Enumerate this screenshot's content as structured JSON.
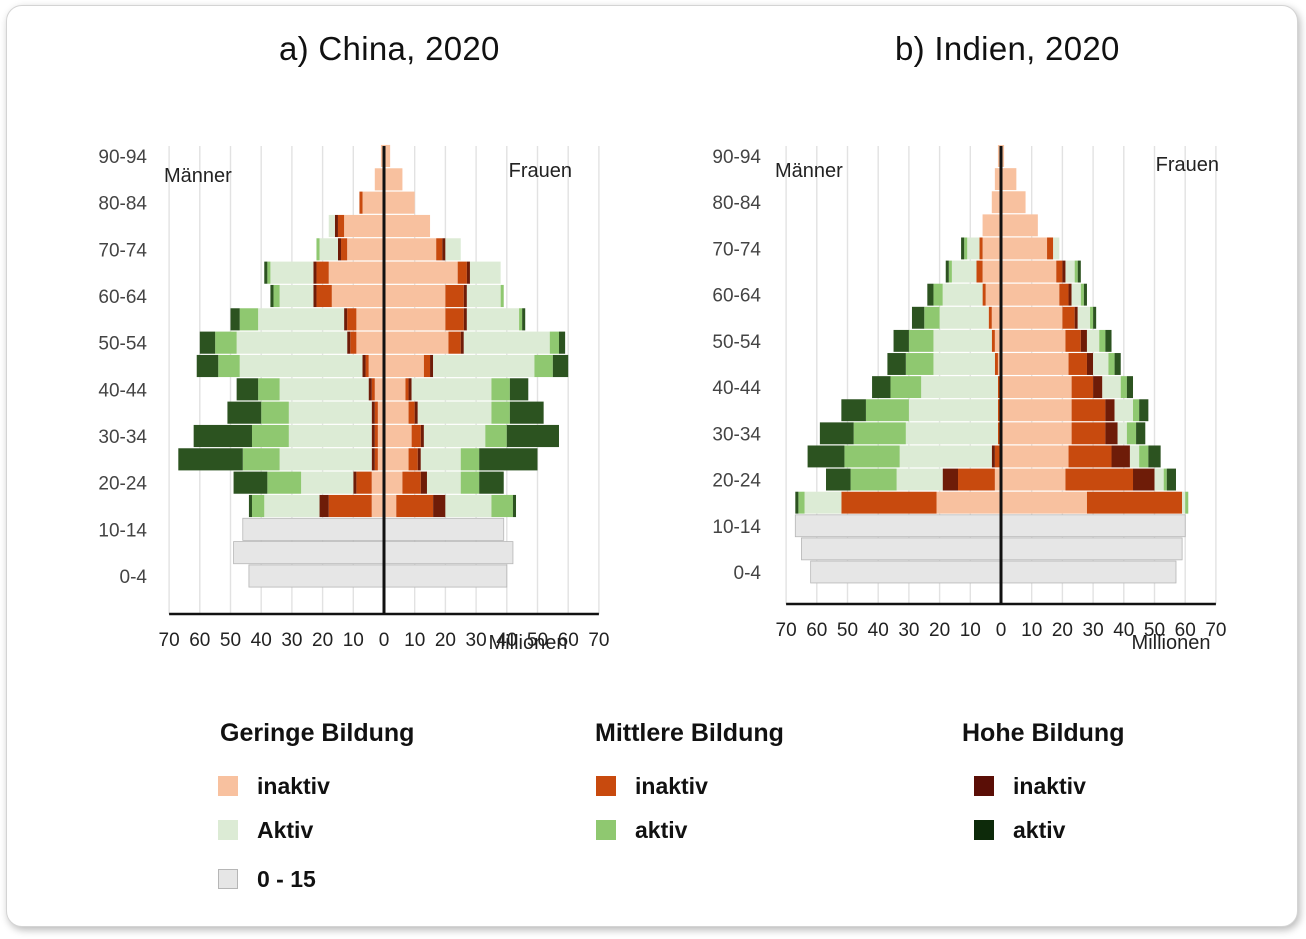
{
  "colors": {
    "low_inactive": "#f8c19f",
    "low_active": "#dcebd5",
    "child": "#e6e6e6",
    "child_border": "#b6b6b6",
    "mid_inactive": "#c84a0e",
    "mid_active": "#8fc870",
    "high_inactive": "#6e1c08",
    "high_active": "#2c5320",
    "grid": "#e2e2e2",
    "axis": "#111111",
    "tick": "#444444"
  },
  "legend": {
    "groups": [
      {
        "title": "Geringe Bildung",
        "items": [
          {
            "label": "inaktiv",
            "color": "#f8c19f"
          },
          {
            "label": "Aktiv",
            "color": "#dcebd5"
          },
          {
            "label": "0 - 15",
            "color": "#e6e6e6"
          }
        ]
      },
      {
        "title": "Mittlere Bildung",
        "items": [
          {
            "label": "inaktiv",
            "color": "#c84a0e"
          },
          {
            "label": "aktiv",
            "color": "#8fc870"
          }
        ]
      },
      {
        "title": "Hohe Bildung",
        "items": [
          {
            "label": "inaktiv",
            "color": "#5a0e06"
          },
          {
            "label": "aktiv",
            "color": "#0d2a0a"
          }
        ]
      }
    ]
  },
  "chart_data": [
    {
      "type": "bar",
      "title": "a) China, 2020",
      "left_label": "Männer",
      "right_label": "Frauen",
      "xlabel": "Millionen",
      "xlim": [
        -70,
        70
      ],
      "xticks": [
        "70",
        "60",
        "50",
        "40",
        "30",
        "20",
        "10",
        "0",
        "10",
        "20",
        "30",
        "40",
        "50",
        "60",
        "70"
      ],
      "age_labels": [
        "90-94",
        "80-84",
        "70-74",
        "60-64",
        "50-54",
        "40-44",
        "30-34",
        "20-24",
        "10-14",
        "0-4"
      ],
      "segment_order": [
        "child",
        "low_inactive",
        "mid_inactive",
        "high_inactive",
        "low_active",
        "mid_active",
        "high_active"
      ],
      "categories": [
        "0-4",
        "5-9",
        "10-14",
        "15-19",
        "20-24",
        "25-29",
        "30-34",
        "35-39",
        "40-44",
        "45-49",
        "50-54",
        "55-59",
        "60-64",
        "65-69",
        "70-74",
        "75-79",
        "80-84",
        "85-89",
        "90-94"
      ],
      "series": [
        {
          "name": "Männer",
          "segments": [
            [
              44,
              0,
              0,
              0,
              0,
              0,
              0
            ],
            [
              49,
              0,
              0,
              0,
              0,
              0,
              0
            ],
            [
              46,
              0,
              0,
              0,
              0,
              0,
              0
            ],
            [
              0,
              4,
              14,
              3,
              18,
              4,
              1
            ],
            [
              0,
              4,
              5,
              1,
              17,
              11,
              11
            ],
            [
              0,
              2,
              1,
              1,
              30,
              12,
              21
            ],
            [
              0,
              2,
              1,
              1,
              27,
              12,
              19
            ],
            [
              0,
              2,
              1,
              1,
              27,
              9,
              11
            ],
            [
              0,
              3,
              1,
              1,
              29,
              7,
              7
            ],
            [
              0,
              5,
              1,
              1,
              40,
              7,
              7
            ],
            [
              0,
              9,
              2,
              1,
              36,
              7,
              5
            ],
            [
              0,
              9,
              3,
              1,
              28,
              6,
              3
            ],
            [
              0,
              17,
              5,
              1,
              11,
              2,
              1
            ],
            [
              0,
              18,
              4,
              1,
              14,
              1,
              1
            ],
            [
              0,
              12,
              2,
              1,
              6,
              1,
              0
            ],
            [
              0,
              13,
              2,
              1,
              2,
              0,
              0
            ],
            [
              0,
              7,
              1,
              0,
              0,
              0,
              0
            ],
            [
              0,
              3,
              0,
              0,
              0,
              0,
              0
            ],
            [
              0,
              1,
              0,
              0,
              0,
              0,
              0
            ]
          ]
        },
        {
          "name": "Frauen",
          "segments": [
            [
              40,
              0,
              0,
              0,
              0,
              0,
              0
            ],
            [
              42,
              0,
              0,
              0,
              0,
              0,
              0
            ],
            [
              39,
              0,
              0,
              0,
              0,
              0,
              0
            ],
            [
              0,
              4,
              12,
              4,
              15,
              7,
              1
            ],
            [
              0,
              6,
              6,
              2,
              11,
              6,
              8
            ],
            [
              0,
              8,
              3,
              1,
              13,
              6,
              19
            ],
            [
              0,
              9,
              3,
              1,
              20,
              7,
              17
            ],
            [
              0,
              8,
              2,
              1,
              24,
              6,
              11
            ],
            [
              0,
              7,
              1,
              1,
              26,
              6,
              6
            ],
            [
              0,
              13,
              2,
              1,
              33,
              6,
              5
            ],
            [
              0,
              21,
              4,
              1,
              28,
              3,
              2
            ],
            [
              0,
              20,
              6,
              1,
              17,
              1,
              1
            ],
            [
              0,
              20,
              6,
              1,
              11,
              1,
              0
            ],
            [
              0,
              24,
              3,
              1,
              10,
              0,
              0
            ],
            [
              0,
              17,
              2,
              1,
              5,
              0,
              0
            ],
            [
              0,
              15,
              0,
              0,
              0,
              0,
              0
            ],
            [
              0,
              10,
              0,
              0,
              0,
              0,
              0
            ],
            [
              0,
              6,
              0,
              0,
              0,
              0,
              0
            ],
            [
              0,
              2,
              0,
              0,
              0,
              0,
              0
            ]
          ]
        }
      ]
    },
    {
      "type": "bar",
      "title": "b) Indien, 2020",
      "left_label": "Männer",
      "right_label": "Frauen",
      "xlabel": "Millionen",
      "xlim": [
        -70,
        70
      ],
      "xticks": [
        "70",
        "60",
        "50",
        "40",
        "30",
        "20",
        "10",
        "0",
        "10",
        "20",
        "30",
        "40",
        "50",
        "60",
        "70"
      ],
      "age_labels": [
        "90-94",
        "80-84",
        "70-74",
        "60-64",
        "50-54",
        "40-44",
        "30-34",
        "20-24",
        "10-14",
        "0-4"
      ],
      "segment_order": [
        "child",
        "low_inactive",
        "mid_inactive",
        "high_inactive",
        "low_active",
        "mid_active",
        "high_active"
      ],
      "categories": [
        "0-4",
        "5-9",
        "10-14",
        "15-19",
        "20-24",
        "25-29",
        "30-34",
        "35-39",
        "40-44",
        "45-49",
        "50-54",
        "55-59",
        "60-64",
        "65-69",
        "70-74",
        "75-79",
        "80-84",
        "85-89",
        "90-94"
      ],
      "series": [
        {
          "name": "Männer",
          "segments": [
            [
              62,
              0,
              0,
              0,
              0,
              0,
              0
            ],
            [
              65,
              0,
              0,
              0,
              0,
              0,
              0
            ],
            [
              67,
              0,
              0,
              0,
              0,
              0,
              0
            ],
            [
              0,
              21,
              31,
              0,
              12,
              2,
              1
            ],
            [
              0,
              2,
              12,
              5,
              15,
              15,
              8
            ],
            [
              0,
              0,
              2,
              1,
              30,
              18,
              12
            ],
            [
              0,
              0,
              1,
              0,
              30,
              17,
              11
            ],
            [
              0,
              0,
              1,
              0,
              29,
              14,
              8
            ],
            [
              0,
              0,
              1,
              0,
              25,
              10,
              6
            ],
            [
              0,
              1,
              1,
              0,
              20,
              9,
              6
            ],
            [
              0,
              2,
              1,
              0,
              19,
              8,
              5
            ],
            [
              0,
              3,
              1,
              0,
              16,
              5,
              4
            ],
            [
              0,
              5,
              1,
              0,
              13,
              3,
              2
            ],
            [
              0,
              6,
              2,
              0,
              8,
              1,
              1
            ],
            [
              0,
              6,
              1,
              0,
              4,
              1,
              1
            ],
            [
              0,
              6,
              0,
              0,
              0,
              0,
              0
            ],
            [
              0,
              3,
              0,
              0,
              0,
              0,
              0
            ],
            [
              0,
              2,
              0,
              0,
              0,
              0,
              0
            ],
            [
              0,
              1,
              0,
              0,
              0,
              0,
              0
            ]
          ]
        },
        {
          "name": "Frauen",
          "segments": [
            [
              57,
              0,
              0,
              0,
              0,
              0,
              0
            ],
            [
              59,
              0,
              0,
              0,
              0,
              0,
              0
            ],
            [
              60,
              0,
              0,
              0,
              0,
              0,
              0
            ],
            [
              0,
              28,
              31,
              0,
              1,
              1,
              0
            ],
            [
              0,
              21,
              22,
              7,
              3,
              1,
              3
            ],
            [
              0,
              22,
              14,
              6,
              3,
              3,
              4
            ],
            [
              0,
              23,
              11,
              4,
              3,
              3,
              3
            ],
            [
              0,
              23,
              11,
              3,
              6,
              2,
              3
            ],
            [
              0,
              23,
              7,
              3,
              6,
              2,
              2
            ],
            [
              0,
              22,
              6,
              2,
              5,
              2,
              2
            ],
            [
              0,
              21,
              5,
              2,
              4,
              2,
              2
            ],
            [
              0,
              20,
              4,
              1,
              4,
              1,
              1
            ],
            [
              0,
              19,
              3,
              1,
              3,
              1,
              1
            ],
            [
              0,
              18,
              2,
              1,
              3,
              1,
              1
            ],
            [
              0,
              15,
              2,
              0,
              2,
              0,
              0
            ],
            [
              0,
              12,
              0,
              0,
              0,
              0,
              0
            ],
            [
              0,
              8,
              0,
              0,
              0,
              0,
              0
            ],
            [
              0,
              5,
              0,
              0,
              0,
              0,
              0
            ],
            [
              0,
              1,
              0,
              0,
              0,
              0,
              0
            ]
          ]
        }
      ]
    }
  ]
}
